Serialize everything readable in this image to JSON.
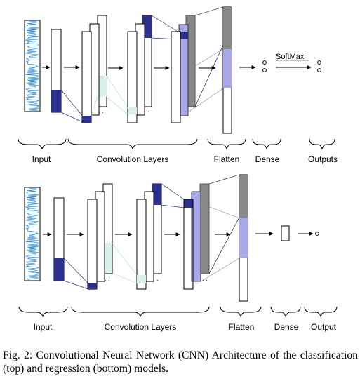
{
  "diagrams": {
    "top": {
      "labels": {
        "input": "Input",
        "conv": "Convolution Layers",
        "flatten": "Flatten",
        "dense": "Dense",
        "outputs": "Outputs"
      },
      "softmax": "SoftMax"
    },
    "bottom": {
      "labels": {
        "input": "Input",
        "conv": "Convolution Layers",
        "flatten": "Flatten",
        "dense": "Dense",
        "output": "Output"
      }
    }
  },
  "caption": "Fig. 2: Convolutional Neural Network (CNN) Architecture of the classification (top) and regression (bottom) models.",
  "colors": {
    "kernel": "#2b2f8f",
    "light_teal": "#d9f0ec",
    "light_purple": "#a8a8e6",
    "dark_gray": "#888888",
    "signal": "#2f8fd8"
  }
}
